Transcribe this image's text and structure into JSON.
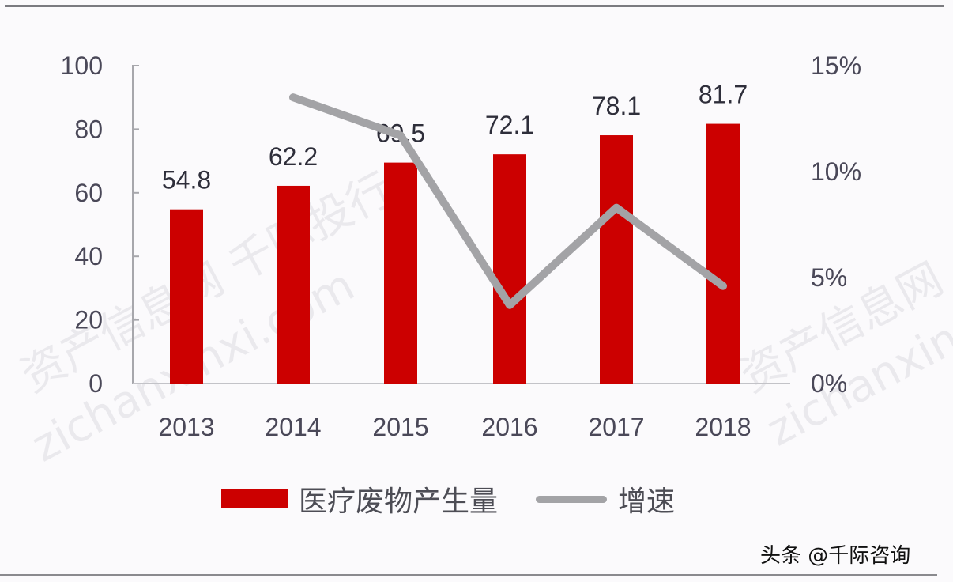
{
  "chart_data": {
    "type": "bar",
    "categories": [
      "2013",
      "2014",
      "2015",
      "2016",
      "2017",
      "2018"
    ],
    "series": [
      {
        "name": "医疗废物产生量",
        "kind": "bar",
        "axis": "left",
        "color": "#cc0000",
        "values": [
          54.8,
          62.2,
          69.5,
          72.1,
          78.1,
          81.7
        ]
      },
      {
        "name": "增速",
        "kind": "line",
        "axis": "right",
        "color": "#a3a3a6",
        "values": [
          null,
          13.5,
          11.7,
          3.7,
          8.3,
          4.6
        ]
      }
    ],
    "data_labels": [
      "54.8",
      "62.2",
      "69.5",
      "72.1",
      "78.1",
      "81.7"
    ],
    "y_left": {
      "ylim": [
        0,
        100
      ],
      "ticks": [
        "0",
        "20",
        "40",
        "60",
        "80",
        "100"
      ]
    },
    "y_right": {
      "ylim": [
        0,
        15
      ],
      "ticks": [
        "0%",
        "5%",
        "10%",
        "15%"
      ]
    },
    "title": "",
    "xlabel": "",
    "ylabel": "",
    "grid": false,
    "legend_position": "bottom"
  },
  "legend": {
    "bar_label": "医疗废物产生量",
    "line_label": "增速"
  },
  "credit": "头条 @千际咨询",
  "watermarks": [
    "资产信息网 千际投行",
    "zichanxinxi.com",
    "资产信息网",
    "zichanxinxi"
  ]
}
